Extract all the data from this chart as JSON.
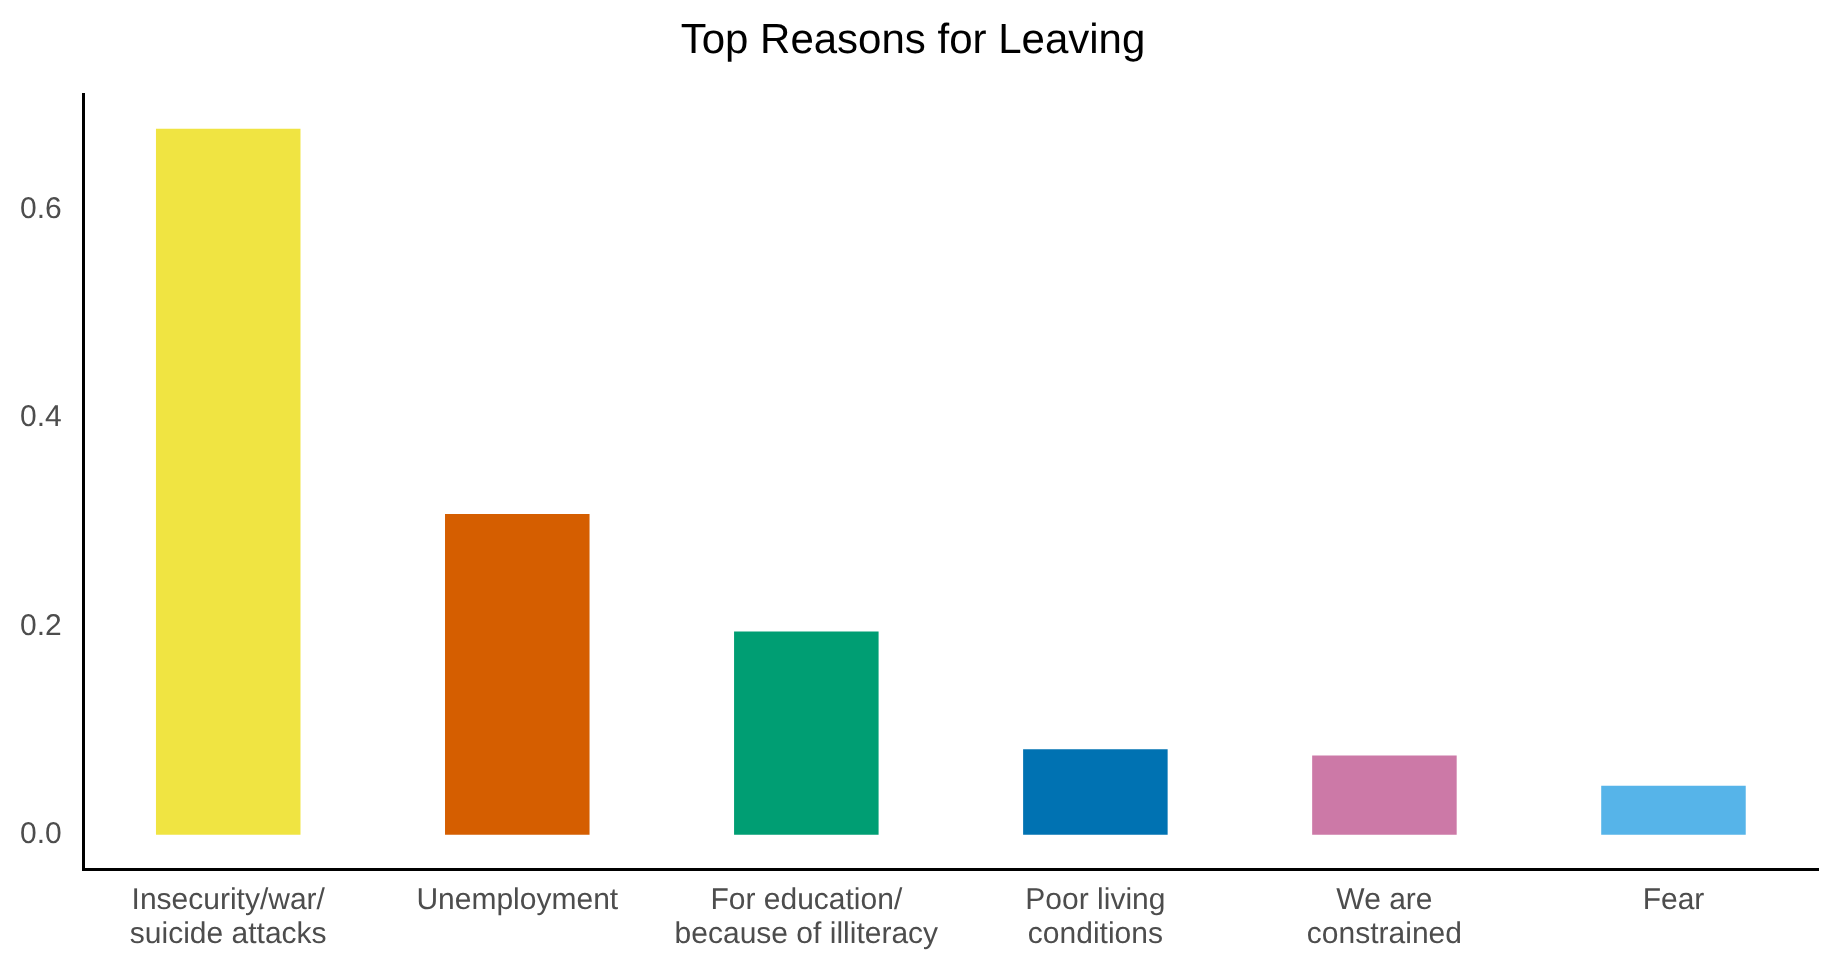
{
  "chart_data": {
    "type": "bar",
    "title": "Top Reasons for Leaving",
    "categories": [
      "Insecurity/war/\nsuicide attacks",
      "Unemployment",
      "For education/\nbecause of illiteracy",
      "Poor living\nconditions",
      "We are\nconstrained",
      "Fear"
    ],
    "values": [
      0.678,
      0.308,
      0.195,
      0.082,
      0.076,
      0.047
    ],
    "colors": [
      "#f0e442",
      "#d55e00",
      "#009e73",
      "#0072b2",
      "#cc79a7",
      "#56b4e9"
    ],
    "ylim": [
      -0.033,
      0.711
    ],
    "yticks": [
      {
        "value": 0,
        "label": "0.0"
      },
      {
        "value": 0.2,
        "label": "0.2"
      },
      {
        "value": 0.4,
        "label": "0.4"
      },
      {
        "value": 0.6,
        "label": "0.6"
      }
    ],
    "grid": false,
    "legend": false
  }
}
